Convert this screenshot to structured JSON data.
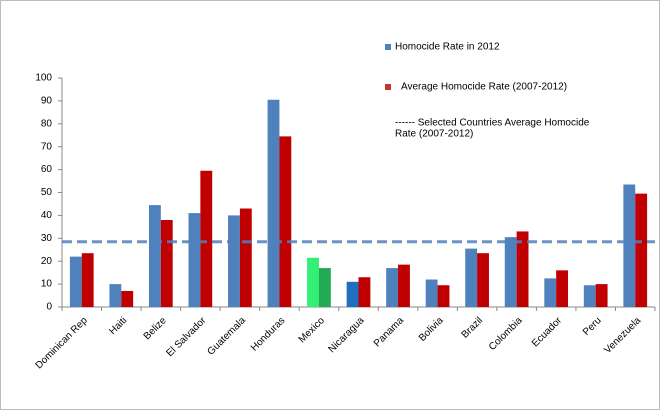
{
  "chart_data": {
    "type": "bar",
    "categories": [
      "Dominican Rep",
      "Haiti",
      "Belize",
      "El Salvador",
      "Guatemala",
      "Honduras",
      "Mexico",
      "Nicaragua",
      "Panama",
      "Bolivia",
      "Brazil",
      "Colombia",
      "Ecuador",
      "Peru",
      "Venezuela"
    ],
    "series": [
      {
        "name": "Homocide Rate in 2012",
        "color": "#4f81bd",
        "colors": [
          "#4f81bd",
          "#4f81bd",
          "#4f81bd",
          "#4f81bd",
          "#4f81bd",
          "#4f81bd",
          "#33ee77",
          "#1f6fc0",
          "#4f81bd",
          "#4f81bd",
          "#4f81bd",
          "#4f81bd",
          "#4f81bd",
          "#4f81bd",
          "#4f81bd"
        ],
        "values": [
          22,
          10,
          44.5,
          41,
          40,
          90.5,
          21.5,
          11,
          17,
          12,
          25.5,
          30.5,
          12.5,
          9.5,
          53.5
        ]
      },
      {
        "name": "Average Homocide Rate (2007-2012)",
        "color": "#c0392b",
        "colors": [
          "#c00000",
          "#c00000",
          "#c00000",
          "#c00000",
          "#c00000",
          "#c00000",
          "#22aa55",
          "#c00000",
          "#c00000",
          "#c00000",
          "#c00000",
          "#c00000",
          "#c00000",
          "#c00000",
          "#c00000"
        ],
        "values": [
          23.5,
          7,
          38,
          59.5,
          43,
          74.5,
          17,
          13,
          18.5,
          9.5,
          23.5,
          33,
          16,
          10,
          49.5
        ]
      }
    ],
    "reference_line": {
      "value": 28.5,
      "color": "#4f81bd",
      "label": [
        "------  Selected Countries Average Homocide",
        "Rate (2007-2012)"
      ]
    },
    "ylim": [
      0,
      100
    ],
    "yticks": [
      0,
      10,
      20,
      30,
      40,
      50,
      60,
      70,
      80,
      90,
      100
    ],
    "grid": false
  }
}
